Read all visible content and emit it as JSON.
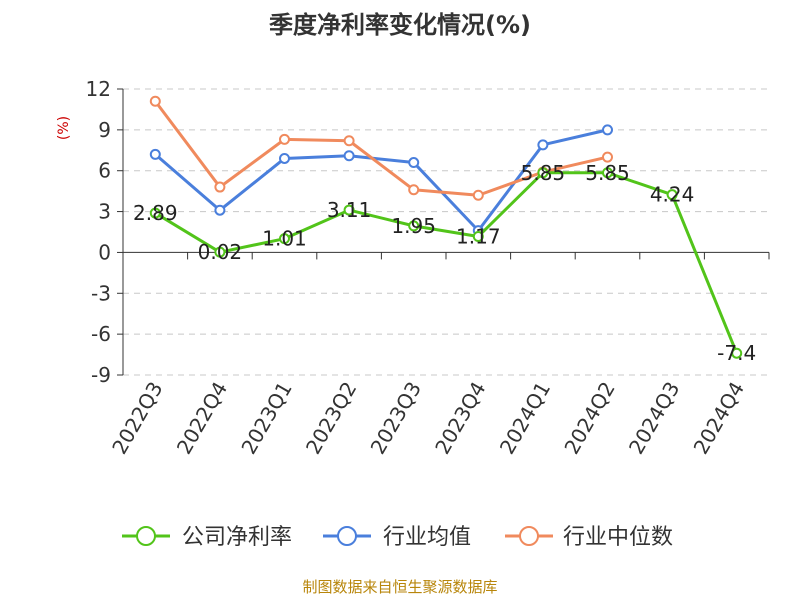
{
  "chart_data": {
    "type": "line",
    "title": "季度净利率变化情况(%)",
    "ylabel": "(%)",
    "categories": [
      "2022Q3",
      "2022Q4",
      "2023Q1",
      "2023Q2",
      "2023Q3",
      "2023Q4",
      "2024Q1",
      "2024Q2",
      "2024Q3",
      "2024Q4"
    ],
    "yticks": [
      "12",
      "9",
      "6",
      "3",
      "0",
      "-3",
      "-6",
      "-9"
    ],
    "ylim": [
      -9,
      12
    ],
    "grid": true,
    "legend_position": "bottom",
    "series": [
      {
        "name": "公司净利率",
        "color": "#52c41a",
        "values": [
          2.89,
          0.02,
          1.01,
          3.11,
          1.95,
          1.17,
          5.85,
          5.85,
          4.24,
          -7.4
        ],
        "labels": [
          "2.89",
          "0.02",
          "1.01",
          "3.11",
          "1.95",
          "1.17",
          "5.85",
          "5.85",
          "4.24",
          "-7.4"
        ]
      },
      {
        "name": "行业均值",
        "color": "#4a7fdc",
        "values": [
          7.2,
          3.1,
          6.9,
          7.1,
          6.6,
          1.6,
          7.9,
          9.0,
          null,
          null
        ]
      },
      {
        "name": "行业中位数",
        "color": "#f08a5d",
        "values": [
          11.1,
          4.8,
          8.3,
          8.2,
          4.6,
          4.2,
          5.9,
          7.0,
          null,
          null
        ]
      }
    ]
  },
  "source": "制图数据来自恒生聚源数据库"
}
